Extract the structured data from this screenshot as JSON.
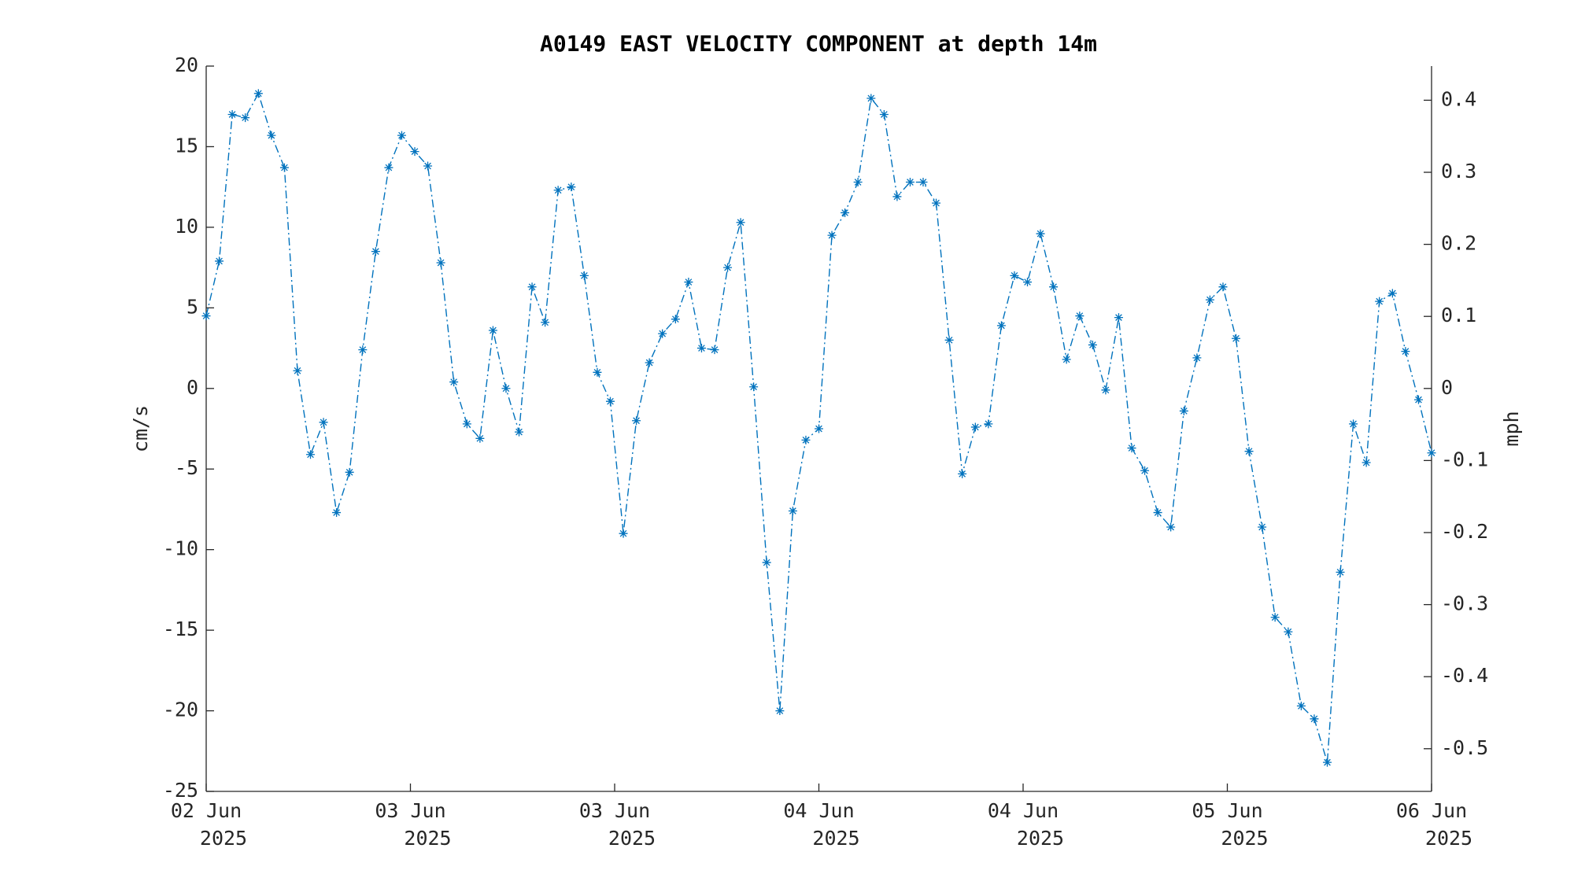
{
  "chart_data": {
    "type": "line",
    "title": "A0149 EAST VELOCITY COMPONENT at depth 14m",
    "ylabel": "cm/s",
    "y2label": "mph",
    "color": "#0072bd",
    "marker": "asterisk",
    "linestyle": "dashdot",
    "x": [
      0,
      1.02,
      2.04,
      3.06,
      4.09,
      5.11,
      6.13,
      7.15,
      8.17,
      9.19,
      10.21,
      11.23,
      12.26,
      13.28,
      14.3,
      15.32,
      16.34,
      17.36,
      18.38,
      19.4,
      20.43,
      21.45,
      22.47,
      23.49,
      24.51,
      25.53,
      26.55,
      27.57,
      28.6,
      29.62,
      30.64,
      31.66,
      32.68,
      33.7,
      34.72,
      35.74,
      36.77,
      37.79,
      38.81,
      39.83,
      40.85,
      41.87,
      42.89,
      43.91,
      44.94,
      45.96,
      46.98,
      48,
      49.02,
      50.04,
      51.06,
      52.09,
      53.11,
      54.13,
      55.15,
      56.17,
      57.19,
      58.21,
      59.23,
      60.26,
      61.28,
      62.3,
      63.32,
      64.34,
      65.36,
      66.38,
      67.4,
      68.43,
      69.45,
      70.47,
      71.49,
      72.51,
      73.53,
      74.55,
      75.57,
      76.6,
      77.62,
      78.64,
      79.66,
      80.68,
      81.7,
      82.72,
      83.74,
      84.77,
      85.79,
      86.81,
      87.83,
      88.85,
      89.87,
      90.89,
      91.91,
      92.94,
      93.96,
      94.98,
      96
    ],
    "values": [
      4.5,
      7.9,
      17.0,
      16.8,
      18.3,
      15.7,
      13.7,
      1.1,
      -4.1,
      -2.1,
      -7.7,
      -5.2,
      2.4,
      8.5,
      13.7,
      15.7,
      14.7,
      13.8,
      7.8,
      0.4,
      -2.2,
      -3.1,
      3.6,
      0.0,
      -2.7,
      6.3,
      4.1,
      12.3,
      12.5,
      7.0,
      1.0,
      -0.8,
      -9.0,
      -2.0,
      1.6,
      3.4,
      4.3,
      6.6,
      2.5,
      2.4,
      7.5,
      10.3,
      0.1,
      -10.8,
      -20.0,
      -7.6,
      -3.2,
      -2.5,
      9.5,
      10.9,
      12.8,
      18.0,
      17.0,
      11.9,
      12.8,
      12.8,
      11.5,
      3.0,
      -5.3,
      -2.4,
      -2.2,
      3.9,
      7.0,
      6.6,
      9.6,
      6.3,
      1.8,
      4.5,
      2.7,
      -0.1,
      4.4,
      -3.7,
      -5.1,
      -7.7,
      -8.6,
      -1.4,
      1.9,
      5.5,
      6.3,
      3.1,
      -3.9,
      -8.6,
      -14.2,
      -15.1,
      -19.7,
      -20.5,
      -23.2,
      -11.4,
      -2.2,
      -4.6,
      5.4,
      5.9,
      2.3,
      -0.7,
      -4.0
    ],
    "xlim": [
      0,
      96
    ],
    "xticks": [
      {
        "value": 0,
        "label": [
          "02 Jun",
          "2025"
        ]
      },
      {
        "value": 16,
        "label": [
          "03 Jun",
          "2025"
        ]
      },
      {
        "value": 32,
        "label": [
          "03 Jun",
          "2025"
        ]
      },
      {
        "value": 48,
        "label": [
          "04 Jun",
          "2025"
        ]
      },
      {
        "value": 64,
        "label": [
          "04 Jun",
          "2025"
        ]
      },
      {
        "value": 80,
        "label": [
          "05 Jun",
          "2025"
        ]
      },
      {
        "value": 96,
        "label": [
          "06 Jun",
          "2025"
        ]
      }
    ],
    "ylim": [
      -25,
      20
    ],
    "yticks": [
      -25,
      -20,
      -15,
      -10,
      -5,
      0,
      5,
      10,
      15,
      20
    ],
    "y2lim": [
      -0.5592,
      0.4474
    ],
    "y2ticks": [
      -0.5,
      -0.4,
      -0.3,
      -0.2,
      -0.1,
      0,
      0.1,
      0.2,
      0.3,
      0.4
    ],
    "grid": false
  }
}
